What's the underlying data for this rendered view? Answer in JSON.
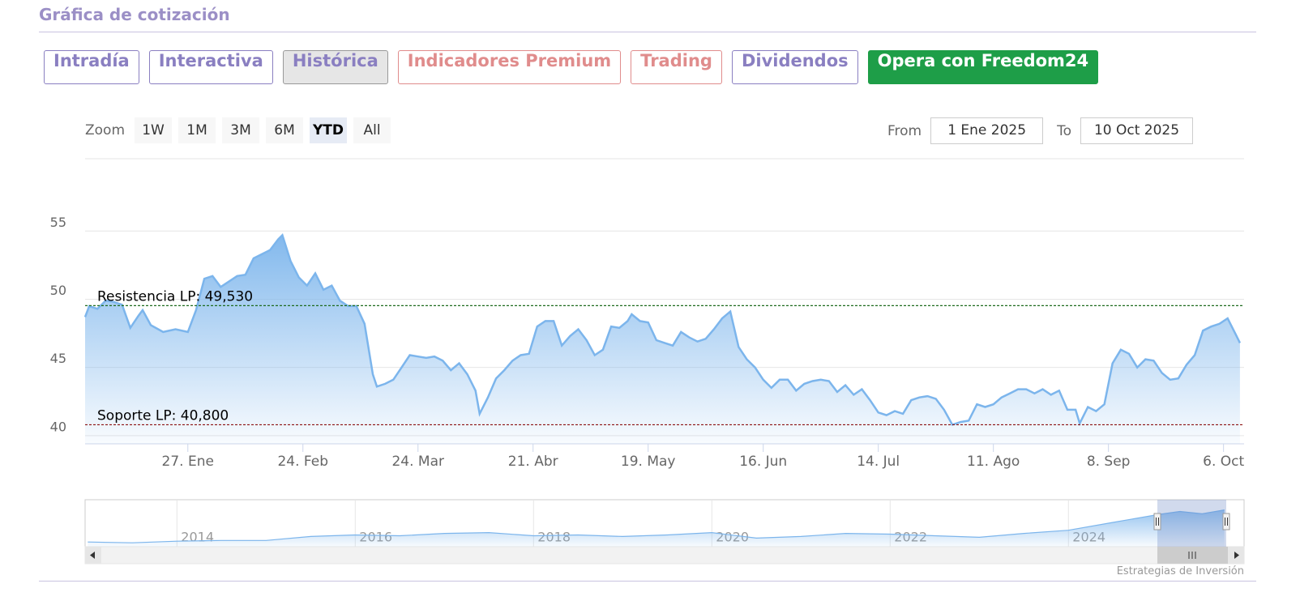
{
  "header": {
    "title": "Gráfica de cotización"
  },
  "tabs": [
    {
      "label": "Intradía",
      "color": "#8a7fc1"
    },
    {
      "label": "Interactiva",
      "color": "#8a7fc1"
    },
    {
      "label": "Histórica",
      "color": "#8a7fc1",
      "active": true
    },
    {
      "label": "Indicadores Premium",
      "color": "#e08c8c"
    },
    {
      "label": "Trading",
      "color": "#e08c8c"
    },
    {
      "label": "Dividendos",
      "color": "#8a7fc1"
    },
    {
      "label": "Opera con Freedom24",
      "color": "#ffffff",
      "background": "#1e9e48"
    }
  ],
  "zoom": {
    "label": "Zoom",
    "buttons": [
      "1W",
      "1M",
      "3M",
      "6M",
      "YTD",
      "All"
    ],
    "selected": "YTD"
  },
  "range": {
    "from_label": "From",
    "from": "1 Ene 2025",
    "to_label": "To",
    "to": "10 Oct 2025"
  },
  "chart_data": [
    {
      "type": "line",
      "color": "#7cb5ec",
      "area": true,
      "grid": true,
      "x": [
        "2025-01-02",
        "2025-01-03",
        "2025-01-05",
        "2025-01-07",
        "2025-01-09",
        "2025-01-11",
        "2025-01-13",
        "2025-01-15",
        "2025-01-16",
        "2025-01-18",
        "2025-01-21",
        "2025-01-24",
        "2025-01-27",
        "2025-01-29",
        "2025-01-31",
        "2025-02-02",
        "2025-02-04",
        "2025-02-06",
        "2025-02-08",
        "2025-02-10",
        "2025-02-12",
        "2025-02-14",
        "2025-02-16",
        "2025-02-18",
        "2025-02-19",
        "2025-02-21",
        "2025-02-23",
        "2025-02-25",
        "2025-02-27",
        "2025-03-01",
        "2025-03-03",
        "2025-03-05",
        "2025-03-07",
        "2025-03-09",
        "2025-03-11",
        "2025-03-13",
        "2025-03-14",
        "2025-03-16",
        "2025-03-18",
        "2025-03-20",
        "2025-03-22",
        "2025-03-24",
        "2025-03-26",
        "2025-03-28",
        "2025-03-30",
        "2025-04-01",
        "2025-04-03",
        "2025-04-05",
        "2025-04-07",
        "2025-04-08",
        "2025-04-10",
        "2025-04-12",
        "2025-04-14",
        "2025-04-16",
        "2025-04-18",
        "2025-04-20",
        "2025-04-22",
        "2025-04-24",
        "2025-04-26",
        "2025-04-28",
        "2025-04-30",
        "2025-05-02",
        "2025-05-04",
        "2025-05-06",
        "2025-05-08",
        "2025-05-10",
        "2025-05-12",
        "2025-05-14",
        "2025-05-15",
        "2025-05-17",
        "2025-05-19",
        "2025-05-21",
        "2025-05-23",
        "2025-05-25",
        "2025-05-27",
        "2025-05-29",
        "2025-05-31",
        "2025-06-02",
        "2025-06-04",
        "2025-06-06",
        "2025-06-08",
        "2025-06-10",
        "2025-06-12",
        "2025-06-14",
        "2025-06-16",
        "2025-06-18",
        "2025-06-20",
        "2025-06-22",
        "2025-06-24",
        "2025-06-26",
        "2025-06-28",
        "2025-06-30",
        "2025-07-02",
        "2025-07-04",
        "2025-07-06",
        "2025-07-08",
        "2025-07-10",
        "2025-07-12",
        "2025-07-14",
        "2025-07-16",
        "2025-07-18",
        "2025-07-20",
        "2025-07-22",
        "2025-07-24",
        "2025-07-26",
        "2025-07-28",
        "2025-07-30",
        "2025-08-01",
        "2025-08-03",
        "2025-08-05",
        "2025-08-07",
        "2025-08-09",
        "2025-08-11",
        "2025-08-13",
        "2025-08-15",
        "2025-08-17",
        "2025-08-19",
        "2025-08-21",
        "2025-08-23",
        "2025-08-25",
        "2025-08-27",
        "2025-08-29",
        "2025-08-31",
        "2025-09-01",
        "2025-09-03",
        "2025-09-05",
        "2025-09-07",
        "2025-09-09",
        "2025-09-11",
        "2025-09-13",
        "2025-09-15",
        "2025-09-17",
        "2025-09-19",
        "2025-09-21",
        "2025-09-23",
        "2025-09-25",
        "2025-09-27",
        "2025-09-29",
        "2025-10-01",
        "2025-10-03",
        "2025-10-05",
        "2025-10-07",
        "2025-10-09",
        "2025-10-10"
      ],
      "values": [
        48.7,
        49.5,
        49.3,
        49.9,
        49.8,
        49.6,
        47.9,
        48.8,
        49.2,
        48.1,
        47.6,
        47.8,
        47.6,
        49.2,
        51.5,
        51.7,
        50.9,
        51.3,
        51.7,
        51.8,
        53.0,
        53.3,
        53.6,
        54.4,
        54.7,
        52.8,
        51.6,
        51.0,
        51.9,
        50.7,
        51.0,
        49.9,
        49.5,
        49.5,
        48.2,
        44.5,
        43.6,
        43.8,
        44.1,
        45.0,
        45.9,
        45.8,
        45.7,
        45.8,
        45.5,
        44.8,
        45.3,
        44.5,
        43.3,
        41.6,
        42.8,
        44.2,
        44.8,
        45.5,
        45.9,
        46.0,
        48.0,
        48.4,
        48.4,
        46.6,
        47.3,
        47.8,
        47.0,
        45.9,
        46.3,
        48.0,
        47.9,
        48.4,
        48.9,
        48.4,
        48.3,
        47.0,
        46.8,
        46.6,
        47.6,
        47.2,
        46.9,
        47.1,
        47.8,
        48.6,
        49.1,
        46.5,
        45.6,
        45.0,
        44.1,
        43.5,
        44.1,
        44.1,
        43.3,
        43.8,
        44.0,
        44.1,
        44.0,
        43.2,
        43.7,
        43.0,
        43.4,
        42.6,
        41.7,
        41.5,
        41.8,
        41.6,
        42.6,
        42.8,
        42.9,
        42.7,
        41.9,
        40.8,
        41.0,
        41.1,
        42.3,
        42.1,
        42.3,
        42.8,
        43.1,
        43.4,
        43.4,
        43.1,
        43.4,
        43.0,
        43.3,
        41.9,
        41.9,
        40.9,
        42.1,
        41.8,
        42.3,
        45.3,
        46.3,
        46.0,
        45.0,
        45.6,
        45.5,
        44.6,
        44.1,
        44.2,
        45.2,
        45.9,
        47.7,
        48.0,
        48.2,
        48.6,
        47.4,
        46.8
      ],
      "xlim": [
        "2025-01-02",
        "2025-10-11"
      ],
      "xticks": [
        {
          "value": "2025-01-27",
          "label": "27. Ene"
        },
        {
          "value": "2025-02-24",
          "label": "24. Feb"
        },
        {
          "value": "2025-03-24",
          "label": "24. Mar"
        },
        {
          "value": "2025-04-21",
          "label": "21. Abr"
        },
        {
          "value": "2025-05-19",
          "label": "19. May"
        },
        {
          "value": "2025-06-16",
          "label": "16. Jun"
        },
        {
          "value": "2025-07-14",
          "label": "14. Jul"
        },
        {
          "value": "2025-08-11",
          "label": "11. Ago"
        },
        {
          "value": "2025-09-08",
          "label": "8. Sep"
        },
        {
          "value": "2025-10-06",
          "label": "6. Oct"
        }
      ],
      "ylim": [
        39.4,
        60.3
      ],
      "yticks": [
        40,
        45,
        50,
        55
      ],
      "plot_lines": [
        {
          "label": "Resistencia LP: 49,530",
          "value": 49.53,
          "color": "#1d6b1d"
        },
        {
          "label": "Soporte LP: 40,800",
          "value": 40.8,
          "color": "#8b1010"
        }
      ]
    },
    {
      "type": "area",
      "color": "#7cb5ec",
      "grid": true,
      "x": [
        2013,
        2013.5,
        2014,
        2014.5,
        2015,
        2015.5,
        2016,
        2016.5,
        2017,
        2017.5,
        2018,
        2018.5,
        2019,
        2019.5,
        2020,
        2020.5,
        2021,
        2021.5,
        2022,
        2022.5,
        2023,
        2023.5,
        2024,
        2024.5,
        2025,
        2025.25,
        2025.5,
        2025.75
      ],
      "values": [
        6,
        5,
        7,
        8,
        8,
        13,
        15,
        14,
        17,
        18,
        14,
        15,
        13,
        15,
        18,
        11,
        13,
        17,
        16,
        14,
        12,
        17,
        21,
        31,
        41,
        45,
        42,
        47
      ],
      "xlim": [
        2012.97,
        2025.97
      ],
      "xticks": [
        2014,
        2016,
        2018,
        2020,
        2022,
        2024
      ],
      "ylim": [
        0,
        60
      ]
    }
  ],
  "credit": "Estrategias de Inversión"
}
